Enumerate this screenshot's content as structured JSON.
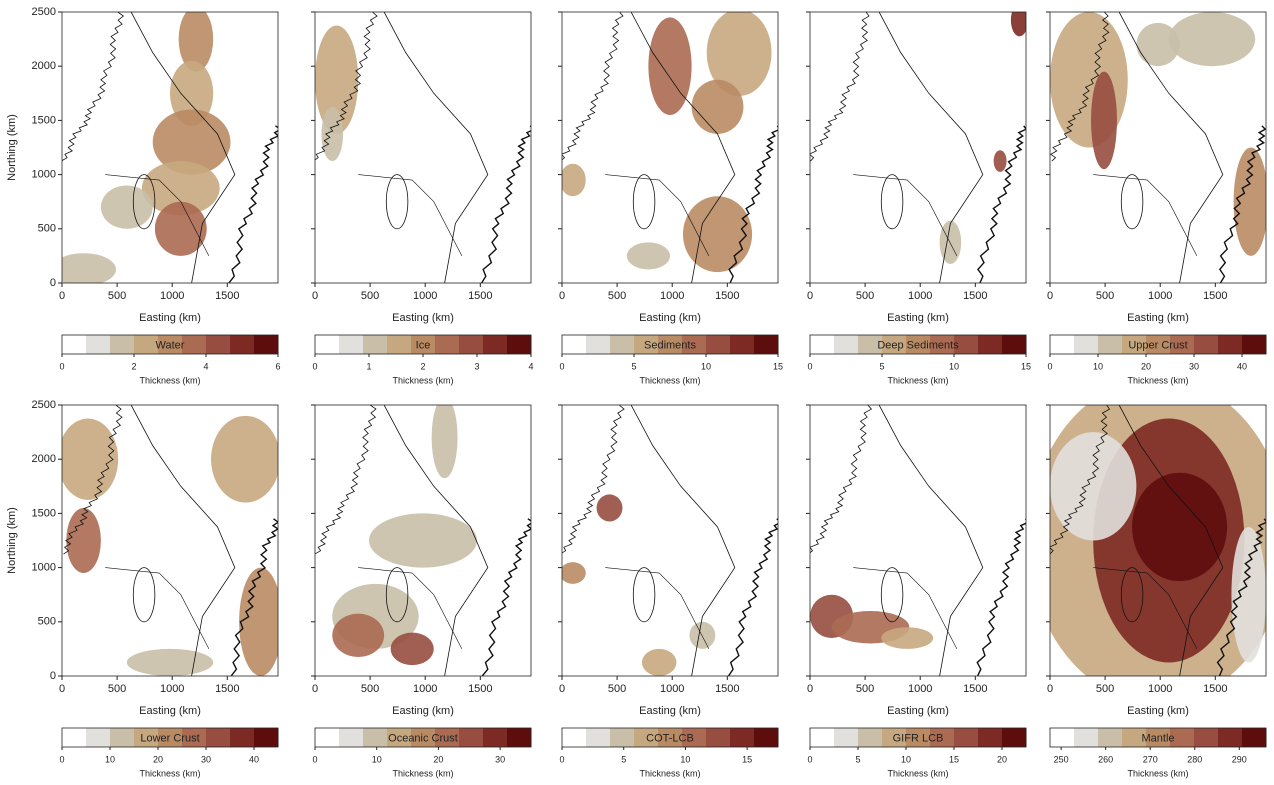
{
  "colormap": [
    "#ffffff",
    "#e2e0dc",
    "#c9bfa8",
    "#c6a880",
    "#b98b64",
    "#ab6a52",
    "#974e40",
    "#7d2a24",
    "#5e0d0d"
  ],
  "chart_data": [
    {
      "type": "map",
      "title": "Water",
      "xlabel": "Easting (km)",
      "ylabel": "Northing (km)",
      "xlim": [
        0,
        1960
      ],
      "ylim": [
        0,
        2500
      ],
      "xticks": [
        0,
        500,
        1000,
        1500
      ],
      "yticks": [
        0,
        500,
        1000,
        1500,
        2000,
        2500
      ],
      "colorbar": {
        "label": "Thickness (km)",
        "lim": [
          0,
          6
        ],
        "ticks": [
          0,
          2,
          4,
          6
        ]
      }
    },
    {
      "type": "map",
      "title": "Ice",
      "xlabel": "Easting (km)",
      "xlim": [
        0,
        1960
      ],
      "ylim": [
        0,
        2500
      ],
      "xticks": [
        0,
        500,
        1000,
        1500
      ],
      "yticks": [
        0,
        500,
        1000,
        1500,
        2000,
        2500
      ],
      "colorbar": {
        "label": "Thickness (km)",
        "lim": [
          0,
          4
        ],
        "ticks": [
          0,
          1,
          2,
          3,
          4
        ]
      }
    },
    {
      "type": "map",
      "title": "Sediments",
      "xlabel": "Easting (km)",
      "xlim": [
        0,
        1960
      ],
      "ylim": [
        0,
        2500
      ],
      "xticks": [
        0,
        500,
        1000,
        1500
      ],
      "yticks": [
        0,
        500,
        1000,
        1500,
        2000,
        2500
      ],
      "colorbar": {
        "label": "Thickness (km)",
        "lim": [
          0,
          15
        ],
        "ticks": [
          0,
          5,
          10,
          15
        ]
      }
    },
    {
      "type": "map",
      "title": "Deep Sediments",
      "xlabel": "Easting (km)",
      "xlim": [
        0,
        1960
      ],
      "ylim": [
        0,
        2500
      ],
      "xticks": [
        0,
        500,
        1000,
        1500
      ],
      "yticks": [
        0,
        500,
        1000,
        1500,
        2000,
        2500
      ],
      "colorbar": {
        "label": "Thickness (km)",
        "lim": [
          0,
          15
        ],
        "ticks": [
          0,
          5,
          10,
          15
        ]
      }
    },
    {
      "type": "map",
      "title": "Upper Crust",
      "xlabel": "Easting (km)",
      "xlim": [
        0,
        1960
      ],
      "ylim": [
        0,
        2500
      ],
      "xticks": [
        0,
        500,
        1000,
        1500
      ],
      "yticks": [
        0,
        500,
        1000,
        1500,
        2000,
        2500
      ],
      "colorbar": {
        "label": "Thickness (km)",
        "lim": [
          0,
          45
        ],
        "ticks": [
          0,
          10,
          20,
          30,
          40
        ]
      }
    },
    {
      "type": "map",
      "title": "Lower Crust",
      "xlabel": "Easting (km)",
      "ylabel": "Northing (km)",
      "xlim": [
        0,
        1960
      ],
      "ylim": [
        0,
        2500
      ],
      "xticks": [
        0,
        500,
        1000,
        1500
      ],
      "yticks": [
        0,
        500,
        1000,
        1500,
        2000,
        2500
      ],
      "colorbar": {
        "label": "Thickness (km)",
        "lim": [
          0,
          45
        ],
        "ticks": [
          0,
          10,
          20,
          30,
          40
        ]
      }
    },
    {
      "type": "map",
      "title": "Oceanic Crust",
      "xlabel": "Easting (km)",
      "xlim": [
        0,
        1960
      ],
      "ylim": [
        0,
        2500
      ],
      "xticks": [
        0,
        500,
        1000,
        1500
      ],
      "yticks": [
        0,
        500,
        1000,
        1500,
        2000,
        2500
      ],
      "colorbar": {
        "label": "Thickness (km)",
        "lim": [
          0,
          35
        ],
        "ticks": [
          0,
          10,
          20,
          30
        ]
      }
    },
    {
      "type": "map",
      "title": "COT-LCB",
      "xlabel": "Easting (km)",
      "xlim": [
        0,
        1960
      ],
      "ylim": [
        0,
        2500
      ],
      "xticks": [
        0,
        500,
        1000,
        1500
      ],
      "yticks": [
        0,
        500,
        1000,
        1500,
        2000,
        2500
      ],
      "colorbar": {
        "label": "Thickness (km)",
        "lim": [
          0,
          17.5
        ],
        "ticks": [
          0,
          5,
          10,
          15
        ]
      }
    },
    {
      "type": "map",
      "title": "GIFR LCB",
      "xlabel": "Easting (km)",
      "xlim": [
        0,
        1960
      ],
      "ylim": [
        0,
        2500
      ],
      "xticks": [
        0,
        500,
        1000,
        1500
      ],
      "yticks": [
        0,
        500,
        1000,
        1500,
        2000,
        2500
      ],
      "colorbar": {
        "label": "Thickness (km)",
        "lim": [
          0,
          22.5
        ],
        "ticks": [
          0,
          5,
          10,
          15,
          20
        ]
      }
    },
    {
      "type": "map",
      "title": "Mantle",
      "xlabel": "Easting (km)",
      "xlim": [
        0,
        1960
      ],
      "ylim": [
        0,
        2500
      ],
      "xticks": [
        0,
        500,
        1000,
        1500
      ],
      "yticks": [
        0,
        500,
        1000,
        1500,
        2000,
        2500
      ],
      "colorbar": {
        "label": "Thickness (km)",
        "lim": [
          247.5,
          296
        ],
        "ticks": [
          250,
          260,
          270,
          280,
          290
        ]
      }
    }
  ]
}
